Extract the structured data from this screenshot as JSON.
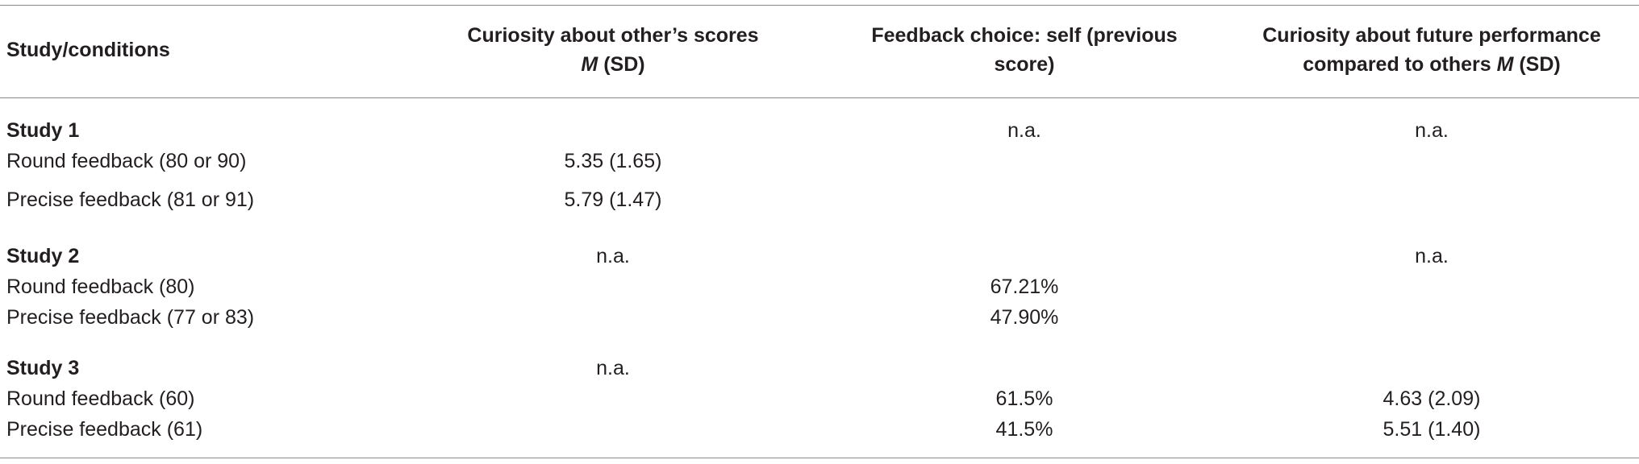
{
  "header": {
    "col0": "Study/conditions",
    "col1_line1": "Curiosity about other’s scores",
    "col1_m": "M",
    "col1_sd": " (SD)",
    "col2_line1": "Feedback choice: self (previous",
    "col2_line2": "score)",
    "col3_line1": "Curiosity about future performance",
    "col3_line2": "compared to others ",
    "col3_m": "M",
    "col3_sd": " (SD)"
  },
  "rows": [
    {
      "label": "Study 1",
      "c1": "",
      "c2": "n.a.",
      "c3": "n.a."
    },
    {
      "label": "Round feedback (80 or 90)",
      "c1": "5.35 (1.65)",
      "c2": "",
      "c3": ""
    },
    {
      "label": "Precise feedback (81 or 91)",
      "c1": "5.79 (1.47)",
      "c2": "",
      "c3": ""
    },
    {
      "label": "Study 2",
      "c1": "n.a.",
      "c2": "",
      "c3": "n.a."
    },
    {
      "label": "Round feedback (80)",
      "c1": "",
      "c2": "67.21%",
      "c3": ""
    },
    {
      "label": "Precise feedback (77 or 83)",
      "c1": "",
      "c2": "47.90%",
      "c3": ""
    },
    {
      "label": "Study 3",
      "c1": "n.a.",
      "c2": "",
      "c3": ""
    },
    {
      "label": "Round feedback (60)",
      "c1": "",
      "c2": "61.5%",
      "c3": "4.63 (2.09)"
    },
    {
      "label": "Precise feedback (61)",
      "c1": "",
      "c2": "41.5%",
      "c3": "5.51 (1.40)"
    }
  ]
}
